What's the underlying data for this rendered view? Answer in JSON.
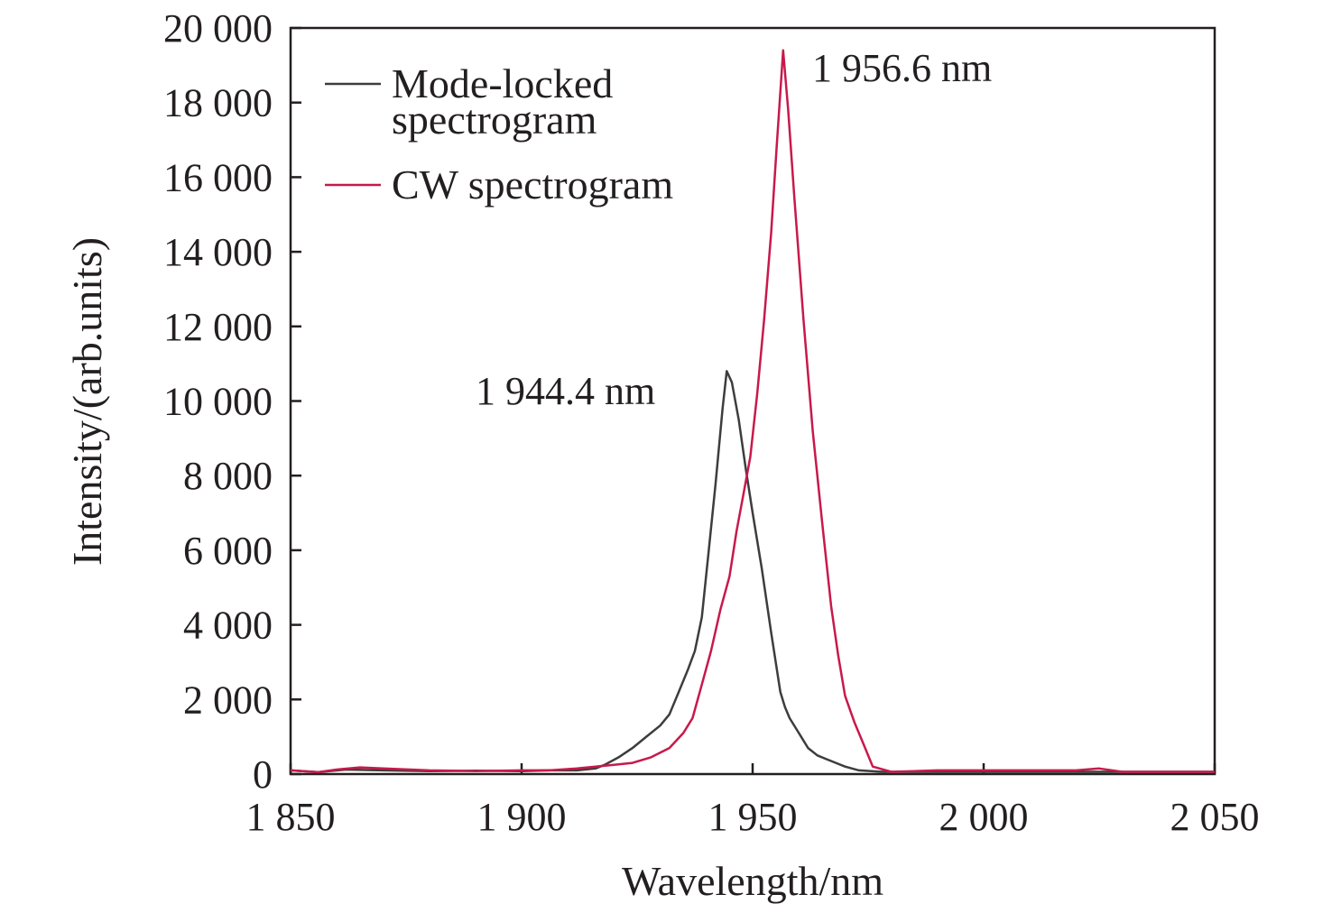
{
  "chart_data": {
    "type": "line",
    "xlabel": "Wavelength/nm",
    "ylabel": "Intensity/(arb.units)",
    "xlim": [
      1850,
      2050
    ],
    "ylim": [
      0,
      20000
    ],
    "xticks": [
      1850,
      1900,
      1950,
      2000,
      2050
    ],
    "xtick_labels": [
      "1 850",
      "1 900",
      "1 950",
      "2 000",
      "2 050"
    ],
    "yticks": [
      0,
      2000,
      4000,
      6000,
      8000,
      10000,
      12000,
      14000,
      16000,
      18000,
      20000
    ],
    "ytick_labels": [
      "0",
      "2 000",
      "4 000",
      "6 000",
      "8 000",
      "10 000",
      "12 000",
      "14 000",
      "16 000",
      "18 000",
      "20 000"
    ],
    "grid": false,
    "legend_position": "top-left",
    "series": [
      {
        "name": "Mode-locked spectrogram",
        "name_lines": [
          "Mode-locked",
          "spectrogram"
        ],
        "color": "#3d3d3d",
        "x": [
          1850,
          1856,
          1862,
          1870,
          1880,
          1890,
          1900,
          1906,
          1912,
          1916,
          1918,
          1921,
          1924,
          1927,
          1930,
          1932,
          1934,
          1936,
          1937.5,
          1939,
          1940.5,
          1942,
          1943.5,
          1944.4,
          1945.5,
          1947,
          1948.5,
          1950,
          1952,
          1954,
          1956,
          1957,
          1958,
          1960,
          1962,
          1964,
          1966,
          1968,
          1970,
          1973,
          1978,
          1990,
          2000,
          2010,
          2020,
          2030,
          2040,
          2050
        ],
        "y": [
          100,
          50,
          120,
          100,
          80,
          90,
          80,
          100,
          100,
          150,
          250,
          450,
          700,
          1000,
          1300,
          1600,
          2200,
          2800,
          3300,
          4200,
          6000,
          7800,
          9800,
          10800,
          10500,
          9500,
          8200,
          7000,
          5500,
          3800,
          2200,
          1800,
          1500,
          1100,
          700,
          500,
          400,
          300,
          200,
          100,
          60,
          60,
          60,
          60,
          60,
          60,
          60,
          60
        ]
      },
      {
        "name": "CW spectrogram",
        "color": "#c8194b",
        "x": [
          1850,
          1856,
          1860,
          1865,
          1870,
          1880,
          1890,
          1900,
          1906,
          1912,
          1916,
          1920,
          1924,
          1928,
          1932,
          1935,
          1937,
          1939,
          1941,
          1943,
          1945,
          1946.5,
          1948,
          1949.5,
          1951,
          1952.5,
          1954,
          1955.2,
          1956.6,
          1957.7,
          1959,
          1961,
          1963,
          1965,
          1967,
          1968.5,
          1970,
          1972,
          1974,
          1976,
          1980,
          1985,
          1990,
          2000,
          2010,
          2020,
          2025,
          2030,
          2050
        ],
        "y": [
          100,
          50,
          120,
          180,
          150,
          100,
          80,
          100,
          100,
          150,
          200,
          250,
          300,
          450,
          700,
          1100,
          1500,
          2400,
          3300,
          4400,
          5300,
          6500,
          7500,
          8500,
          10200,
          12200,
          14500,
          16800,
          19400,
          17800,
          15500,
          12200,
          9200,
          6800,
          4500,
          3200,
          2100,
          1400,
          800,
          200,
          60,
          80,
          100,
          100,
          100,
          100,
          150,
          60,
          60
        ]
      }
    ],
    "annotations": [
      {
        "text": "1 944.4 nm",
        "x": 1944.4,
        "y": 10800
      },
      {
        "text": "1 956.6 nm",
        "x": 1956.6,
        "y": 19400
      }
    ]
  }
}
